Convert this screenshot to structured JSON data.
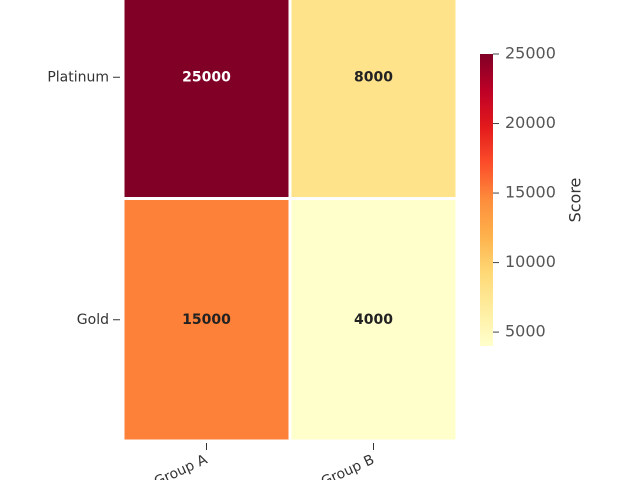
{
  "chart_data": {
    "type": "heatmap",
    "x_categories": [
      "Group A",
      "Group B"
    ],
    "y_categories": [
      "Platinum",
      "Gold"
    ],
    "values": [
      [
        25000,
        8000
      ],
      [
        15000,
        4000
      ]
    ],
    "colormap": [
      "#ffffcc",
      "#ffeda0",
      "#fed976",
      "#feb24c",
      "#fd8d3c",
      "#fc4e2a",
      "#e31a1c",
      "#bd0026",
      "#800026"
    ],
    "colorbar": {
      "label": "Score",
      "lim": [
        4000,
        25000
      ],
      "ticks": [
        5000,
        10000,
        15000,
        20000,
        25000
      ]
    }
  }
}
